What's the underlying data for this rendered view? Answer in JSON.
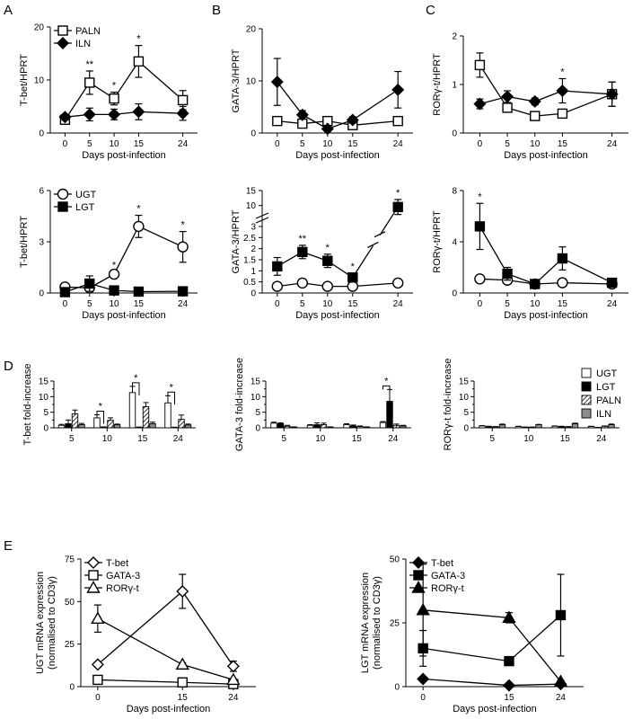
{
  "panel_letters": [
    "A",
    "B",
    "C",
    "D",
    "E"
  ],
  "chart_data": [
    {
      "id": "A1",
      "type": "line",
      "ylabel": "T-bet/HPRT",
      "xlabel": "Days post-infection",
      "x": [
        0,
        5,
        10,
        15,
        24
      ],
      "ylim": [
        0,
        20
      ],
      "yticks": [
        0,
        10,
        20
      ],
      "legend": "top-left",
      "series": [
        {
          "name": "PALN",
          "marker": "square-open",
          "values": [
            2.5,
            9.5,
            6.5,
            13.5,
            6.2
          ],
          "errors": [
            0.6,
            2.2,
            1.2,
            3.0,
            1.8
          ]
        },
        {
          "name": "ILN",
          "marker": "diamond-filled",
          "values": [
            3.0,
            3.5,
            3.5,
            4.0,
            3.7
          ],
          "errors": [
            0.5,
            1.2,
            1.0,
            1.5,
            1.3
          ]
        }
      ],
      "annotations": [
        {
          "x": 5,
          "text": "**"
        },
        {
          "x": 10,
          "text": "*"
        },
        {
          "x": 15,
          "text": "*"
        }
      ]
    },
    {
      "id": "B1",
      "type": "line",
      "ylabel": "GATA-3/HPRT",
      "xlabel": "Days post-infection",
      "x": [
        0,
        5,
        10,
        15,
        24
      ],
      "ylim": [
        0,
        20
      ],
      "yticks": [
        0,
        10,
        20
      ],
      "series": [
        {
          "name": "PALN",
          "marker": "square-open",
          "values": [
            2.3,
            1.8,
            2.3,
            1.5,
            2.3
          ],
          "errors": [
            0.5,
            0.5,
            0.8,
            0.5,
            0.8
          ]
        },
        {
          "name": "ILN",
          "marker": "diamond-filled",
          "values": [
            9.8,
            3.5,
            0.8,
            2.5,
            8.3
          ],
          "errors": [
            4.5,
            0.8,
            0.5,
            0.6,
            3.5
          ]
        }
      ]
    },
    {
      "id": "C1",
      "type": "line",
      "ylabel": "RORγ-t/HPRT",
      "xlabel": "Days post-infection",
      "x": [
        0,
        5,
        10,
        15,
        24
      ],
      "ylim": [
        0,
        2
      ],
      "yticks": [
        0,
        1,
        2
      ],
      "series": [
        {
          "name": "PALN",
          "marker": "square-open",
          "values": [
            1.4,
            0.52,
            0.35,
            0.4,
            0.8
          ],
          "errors": [
            0.25,
            0.08,
            0.05,
            0.05,
            0.25
          ]
        },
        {
          "name": "ILN",
          "marker": "diamond-filled",
          "values": [
            0.6,
            0.75,
            0.65,
            0.87,
            0.8
          ],
          "errors": [
            0.1,
            0.12,
            0.07,
            0.25,
            0.25
          ]
        }
      ],
      "annotations": [
        {
          "x": 15,
          "text": "*"
        }
      ]
    },
    {
      "id": "A2",
      "type": "line",
      "ylabel": "T-bet/HPRT",
      "xlabel": "Days post-infection",
      "x": [
        0,
        5,
        10,
        15,
        24
      ],
      "ylim": [
        0,
        6
      ],
      "yticks": [
        0,
        3,
        6
      ],
      "legend": "top-left",
      "series": [
        {
          "name": "UGT",
          "marker": "circle-open",
          "values": [
            0.35,
            0.3,
            1.1,
            3.9,
            2.7
          ],
          "errors": [
            0.1,
            0.15,
            0.15,
            0.65,
            0.9
          ]
        },
        {
          "name": "LGT",
          "marker": "square-filled",
          "values": [
            0.05,
            0.55,
            0.15,
            0.08,
            0.1
          ],
          "errors": [
            0.05,
            0.45,
            0.05,
            0.03,
            0.03
          ]
        }
      ],
      "annotations": [
        {
          "x": 10,
          "text": "*"
        },
        {
          "x": 15,
          "text": "*"
        },
        {
          "x": 24,
          "text": "*"
        }
      ]
    },
    {
      "id": "B2",
      "type": "line",
      "ylabel": "GATA-3/HPRT",
      "xlabel": "Days post-infection",
      "x": [
        0,
        5,
        10,
        15,
        24
      ],
      "yticks": [
        0,
        0.5,
        1,
        1.5,
        2,
        2.5,
        3,
        10,
        15
      ],
      "axis_break": true,
      "series": [
        {
          "name": "UGT",
          "marker": "circle-open",
          "values": [
            0.3,
            0.45,
            0.3,
            0.3,
            0.45
          ],
          "errors": [
            0.15,
            0.1,
            0.05,
            0.05,
            0.05
          ]
        },
        {
          "name": "LGT",
          "marker": "square-filled",
          "values": [
            1.2,
            1.85,
            1.45,
            0.7,
            9.5
          ],
          "errors": [
            0.4,
            0.3,
            0.3,
            0.2,
            2.5
          ]
        }
      ],
      "annotations": [
        {
          "x": 5,
          "text": "**"
        },
        {
          "x": 10,
          "text": "*"
        },
        {
          "x": 15,
          "text": "*"
        },
        {
          "x": 24,
          "text": "*"
        }
      ]
    },
    {
      "id": "C2",
      "type": "line",
      "ylabel": "RORγ-t/HPRT",
      "xlabel": "Days post-infection",
      "x": [
        0,
        5,
        10,
        15,
        24
      ],
      "ylim": [
        0,
        8
      ],
      "yticks": [
        0,
        4,
        8
      ],
      "series": [
        {
          "name": "UGT",
          "marker": "circle-open",
          "values": [
            1.1,
            1.0,
            0.7,
            0.8,
            0.7
          ],
          "errors": [
            0.2,
            0.15,
            0.1,
            0.1,
            0.1
          ]
        },
        {
          "name": "LGT",
          "marker": "square-filled",
          "values": [
            5.2,
            1.5,
            0.7,
            2.7,
            0.8
          ],
          "errors": [
            1.8,
            0.5,
            0.15,
            0.9,
            0.2
          ]
        }
      ],
      "annotations": [
        {
          "x": 0,
          "text": "*"
        }
      ]
    },
    {
      "id": "D1",
      "type": "bar",
      "ylabel": "T-bet fold-increase",
      "categories": [
        "5",
        "10",
        "15",
        "24"
      ],
      "ylim": [
        0,
        15
      ],
      "yticks": [
        0,
        2.5,
        5,
        7.5,
        10,
        12.5,
        15
      ],
      "series": [
        {
          "name": "UGT",
          "fill": "white",
          "values": [
            0.8,
            3.2,
            11.3,
            8.0
          ],
          "errors": [
            0.3,
            1.0,
            2.0,
            2.3
          ]
        },
        {
          "name": "LGT",
          "fill": "black",
          "values": [
            1.3,
            0.2,
            0.15,
            0.1
          ],
          "errors": [
            1.2,
            0.1,
            0.1,
            0.1
          ]
        },
        {
          "name": "PALN",
          "fill": "hatch",
          "values": [
            4.5,
            2.4,
            6.8,
            2.7
          ],
          "errors": [
            1.2,
            0.8,
            1.3,
            1.4
          ]
        },
        {
          "name": "ILN",
          "fill": "grey",
          "values": [
            1.0,
            1.0,
            1.3,
            0.9
          ],
          "errors": [
            0.4,
            0.2,
            0.5,
            0.3
          ]
        }
      ],
      "annotations": [
        {
          "category": "10",
          "text": "*"
        },
        {
          "category": "15",
          "text": "*"
        },
        {
          "category": "24",
          "text": "*"
        }
      ]
    },
    {
      "id": "D2",
      "type": "bar",
      "ylabel": "GATA-3 fold-increase",
      "categories": [
        "5",
        "10",
        "15",
        "24"
      ],
      "ylim": [
        0,
        15
      ],
      "yticks": [
        0,
        2.5,
        5,
        7.5,
        10,
        12.5,
        15
      ],
      "series": [
        {
          "name": "UGT",
          "fill": "white",
          "values": [
            1.5,
            0.8,
            1.0,
            1.7
          ],
          "errors": [
            0.3,
            0.2,
            0.3,
            0.3
          ]
        },
        {
          "name": "LGT",
          "fill": "black",
          "values": [
            1.3,
            1.0,
            0.6,
            8.5
          ],
          "errors": [
            0.3,
            0.6,
            0.3,
            3.8
          ]
        },
        {
          "name": "PALN",
          "fill": "hatch",
          "values": [
            0.5,
            1.0,
            0.4,
            0.8
          ],
          "errors": [
            0.3,
            0.5,
            0.2,
            0.4
          ]
        },
        {
          "name": "ILN",
          "fill": "grey",
          "values": [
            0.2,
            0.2,
            0.2,
            0.6
          ],
          "errors": [
            0.1,
            0.1,
            0.1,
            0.2
          ]
        }
      ],
      "annotations": [
        {
          "category": "24",
          "text": "*"
        }
      ]
    },
    {
      "id": "D3",
      "type": "bar",
      "ylabel": "RORγ-t fold-increase",
      "categories": [
        "5",
        "10",
        "15",
        "24"
      ],
      "ylim": [
        0,
        15
      ],
      "yticks": [
        0,
        2.5,
        5,
        7.5,
        10,
        12.5,
        15
      ],
      "legend": "right",
      "series": [
        {
          "name": "UGT",
          "fill": "white",
          "values": [
            0.6,
            0.4,
            0.5,
            0.4
          ],
          "errors": [
            0.1,
            0.1,
            0.1,
            0.1
          ]
        },
        {
          "name": "LGT",
          "fill": "black",
          "values": [
            0.4,
            0.2,
            0.4,
            0.1
          ],
          "errors": [
            0.1,
            0.05,
            0.1,
            0.05
          ]
        },
        {
          "name": "PALN",
          "fill": "hatch",
          "values": [
            0.3,
            0.2,
            0.3,
            0.5
          ],
          "errors": [
            0.1,
            0.05,
            0.1,
            0.1
          ]
        },
        {
          "name": "ILN",
          "fill": "grey",
          "values": [
            1.0,
            1.0,
            1.3,
            1.0
          ],
          "errors": [
            0.2,
            0.1,
            0.2,
            0.2
          ]
        }
      ]
    },
    {
      "id": "E1",
      "type": "line",
      "ylabel": "UGT mRNA expression",
      "ylabel2": "(normalised to CD3γ)",
      "xlabel": "Days post-infection",
      "x": [
        0,
        15,
        24
      ],
      "ylim": [
        0,
        75
      ],
      "yticks": [
        0,
        25,
        50,
        75
      ],
      "legend": "top-left",
      "series": [
        {
          "name": "T-bet",
          "marker": "diamond-open",
          "values": [
            13,
            56,
            12
          ],
          "errors": [
            1.5,
            10,
            3
          ]
        },
        {
          "name": "GATA-3",
          "marker": "square-open",
          "values": [
            4,
            2.5,
            1.5
          ],
          "errors": [
            0.5,
            0.5,
            0.5
          ]
        },
        {
          "name": "RORγ-t",
          "marker": "triangle-open",
          "values": [
            40,
            13,
            4
          ],
          "errors": [
            8,
            1,
            0.5
          ]
        }
      ]
    },
    {
      "id": "E2",
      "type": "line",
      "ylabel": "LGT mRNA expression",
      "ylabel2": "(normalised to CD3γ)",
      "xlabel": "Days post-infection",
      "x": [
        0,
        15,
        24
      ],
      "ylim": [
        0,
        50
      ],
      "yticks": [
        0,
        25,
        50
      ],
      "legend": "top-left",
      "series": [
        {
          "name": "T-bet",
          "marker": "diamond-filled",
          "values": [
            3,
            0.5,
            1
          ],
          "errors": [
            0.5,
            0.2,
            0.3
          ]
        },
        {
          "name": "GATA-3",
          "marker": "square-filled",
          "values": [
            15,
            10,
            28
          ],
          "errors": [
            7,
            1.5,
            16
          ]
        },
        {
          "name": "RORγ-t",
          "marker": "triangle-filled",
          "values": [
            30,
            27,
            2
          ],
          "errors": [
            18,
            2,
            0.5
          ]
        }
      ]
    }
  ]
}
